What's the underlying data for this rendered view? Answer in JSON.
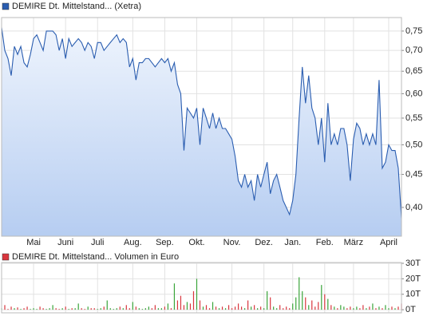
{
  "chart_data": [
    {
      "type": "line",
      "area": true,
      "log_scale": true,
      "grid": true,
      "series": [
        {
          "name": "DEMIRE Dt. Mittelstand... (Xetra)",
          "color": "#2a5db0",
          "values": [
            0.76,
            0.7,
            0.68,
            0.64,
            0.71,
            0.69,
            0.71,
            0.67,
            0.66,
            0.69,
            0.73,
            0.74,
            0.72,
            0.7,
            0.75,
            0.75,
            0.75,
            0.74,
            0.7,
            0.73,
            0.68,
            0.73,
            0.71,
            0.72,
            0.73,
            0.72,
            0.7,
            0.72,
            0.71,
            0.68,
            0.72,
            0.72,
            0.7,
            0.71,
            0.72,
            0.73,
            0.74,
            0.72,
            0.73,
            0.72,
            0.66,
            0.68,
            0.63,
            0.67,
            0.67,
            0.68,
            0.68,
            0.67,
            0.66,
            0.67,
            0.68,
            0.67,
            0.68,
            0.65,
            0.67,
            0.62,
            0.6,
            0.49,
            0.57,
            0.56,
            0.55,
            0.57,
            0.5,
            0.57,
            0.55,
            0.53,
            0.56,
            0.53,
            0.55,
            0.53,
            0.53,
            0.52,
            0.51,
            0.48,
            0.44,
            0.43,
            0.45,
            0.43,
            0.44,
            0.41,
            0.45,
            0.43,
            0.45,
            0.47,
            0.42,
            0.44,
            0.45,
            0.43,
            0.41,
            0.4,
            0.39,
            0.41,
            0.45,
            0.55,
            0.66,
            0.58,
            0.64,
            0.57,
            0.55,
            0.5,
            0.55,
            0.47,
            0.58,
            0.5,
            0.52,
            0.5,
            0.53,
            0.53,
            0.5,
            0.44,
            0.51,
            0.54,
            0.53,
            0.5,
            0.52,
            0.5,
            0.52,
            0.5,
            0.63,
            0.46,
            0.47,
            0.5,
            0.49,
            0.49,
            0.46,
            0.385
          ]
        }
      ],
      "xlim": [
        0,
        125
      ],
      "xticks": [
        {
          "value": 10,
          "label": "Mai"
        },
        {
          "value": 20,
          "label": "Juni"
        },
        {
          "value": 30,
          "label": "Juli"
        },
        {
          "value": 41,
          "label": "Aug."
        },
        {
          "value": 51,
          "label": "Sep."
        },
        {
          "value": 61,
          "label": "Okt."
        },
        {
          "value": 72,
          "label": "Nov."
        },
        {
          "value": 82,
          "label": "Dez."
        },
        {
          "value": 91,
          "label": "Jan."
        },
        {
          "value": 101,
          "label": "Feb."
        },
        {
          "value": 110,
          "label": "März"
        },
        {
          "value": 121,
          "label": "April"
        }
      ],
      "ylim": [
        0.361,
        0.787
      ],
      "yticks": [
        {
          "value": 0.4,
          "label": "0,40"
        },
        {
          "value": 0.45,
          "label": "0,45"
        },
        {
          "value": 0.5,
          "label": "0,50"
        },
        {
          "value": 0.55,
          "label": "0,55"
        },
        {
          "value": 0.6,
          "label": "0,60"
        },
        {
          "value": 0.65,
          "label": "0,65"
        },
        {
          "value": 0.7,
          "label": "0,70"
        },
        {
          "value": 0.75,
          "label": "0,75"
        }
      ]
    },
    {
      "type": "bar",
      "grid": true,
      "up_color": "#3aa53a",
      "down_color": "#d9363e",
      "series": [
        {
          "name": "DEMIRE Dt. Mittelstand... Volumen in Euro",
          "color": "#d9363e",
          "values": [
            1,
            3,
            0.5,
            2,
            1,
            1.5,
            0.5,
            1,
            2,
            0.5,
            1,
            0.5,
            2,
            1,
            0.5,
            1,
            3,
            1,
            0.5,
            1,
            2,
            0.5,
            1,
            1,
            4,
            1,
            0.5,
            2,
            1,
            1,
            0.5,
            1,
            2,
            6,
            1,
            0.5,
            1,
            2,
            1,
            3,
            1,
            5,
            2,
            1,
            0.5,
            1,
            2,
            1,
            3,
            1,
            1,
            2,
            4,
            1,
            17,
            6,
            9,
            3,
            5,
            4,
            12,
            20,
            6,
            2,
            3,
            1,
            5,
            2,
            1,
            2,
            1,
            3,
            1,
            2,
            4,
            2,
            1,
            6,
            2,
            3,
            1,
            2,
            1,
            12,
            8,
            2,
            1,
            3,
            1,
            2,
            1,
            4,
            8,
            21,
            12,
            8,
            3,
            6,
            2,
            5,
            16,
            10,
            7,
            3,
            2,
            1,
            3,
            2,
            1,
            2,
            1,
            2,
            1,
            3,
            1,
            2,
            4,
            1,
            2,
            1,
            3,
            1,
            2,
            1,
            2,
            4
          ]
        }
      ],
      "xlim": [
        0,
        125
      ],
      "ylim": [
        -2,
        30.5
      ],
      "yticks": [
        {
          "value": 0,
          "label": "0T"
        },
        {
          "value": 10,
          "label": "10T"
        },
        {
          "value": 20,
          "label": "20T"
        },
        {
          "value": 30,
          "label": "30T"
        }
      ]
    }
  ]
}
